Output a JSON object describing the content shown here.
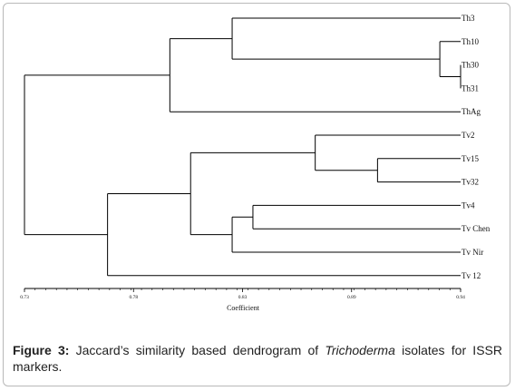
{
  "chart_data": {
    "type": "dendrogram",
    "xlabel": "Coefficient",
    "xlim": [
      0.73,
      0.94
    ],
    "x_ticks": [
      "0.73",
      "0.78",
      "0.83",
      "0.89",
      "0.94"
    ],
    "leaves": [
      "Th3",
      "Th10",
      "Th30",
      "Th31",
      "ThAg",
      "Tv2",
      "Tv15",
      "Tv32",
      "Tv4",
      "Tv Chen",
      "Tv Nir",
      "Tv 12"
    ],
    "merges": [
      {
        "a": "Th30",
        "b": "Th31",
        "height": 0.94
      },
      {
        "a": "Th10",
        "b": "Th30+Th31",
        "height": 0.93
      },
      {
        "a": "Th3",
        "b": "Th10+Th30+Th31",
        "height": 0.83
      },
      {
        "a": "Th3..Th31",
        "b": "ThAg",
        "height": 0.8
      },
      {
        "a": "Tv15",
        "b": "Tv32",
        "height": 0.9
      },
      {
        "a": "Tv2",
        "b": "Tv15+Tv32",
        "height": 0.87
      },
      {
        "a": "Tv4",
        "b": "Tv Chen",
        "height": 0.84
      },
      {
        "a": "Tv4+Tv Chen",
        "b": "Tv Nir",
        "height": 0.83
      },
      {
        "a": "Tv2..Tv32",
        "b": "Tv4..Tv Nir",
        "height": 0.81
      },
      {
        "a": "Tv2..Tv Nir",
        "b": "Tv 12",
        "height": 0.77
      },
      {
        "a": "Th group",
        "b": "Tv group",
        "height": 0.73
      }
    ]
  },
  "caption": {
    "lead": "Figure 3:",
    "text_before": " Jaccard’s similarity based dendrogram of ",
    "italic": "Trichoderma",
    "text_after": " isolates for ISSR markers."
  }
}
